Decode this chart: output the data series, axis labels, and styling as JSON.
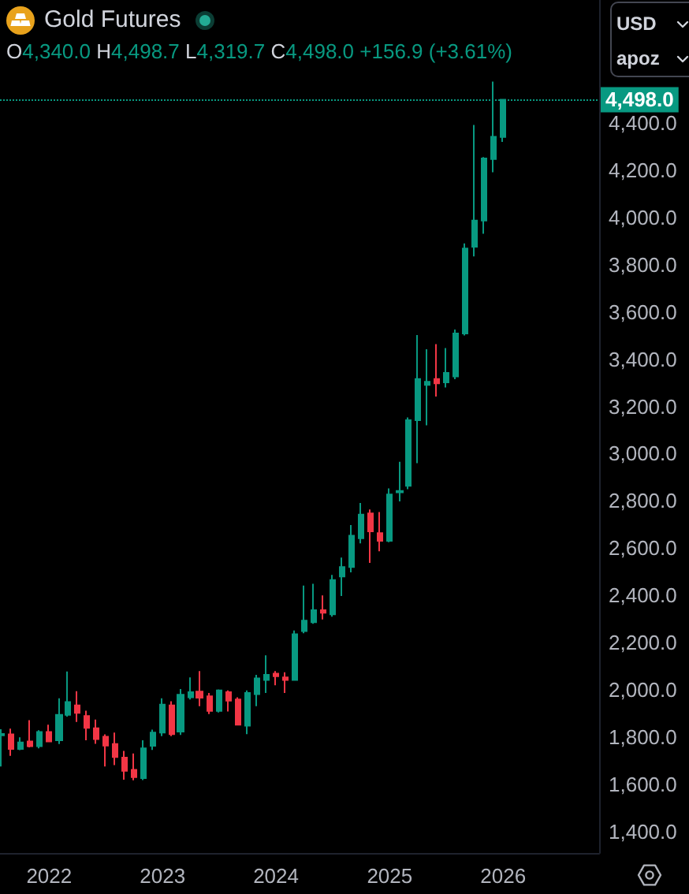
{
  "chart_data": {
    "type": "candlestick",
    "title": "Gold Futures",
    "subtitle": "O4,340.0 H4,498.7 L4,319.7 C4,498.0 +156.9 (+3.61%)",
    "annotations": [
      "USD",
      "apoz"
    ],
    "x": [
      "2021-08",
      "2021-09",
      "2021-10",
      "2021-11",
      "2021-12",
      "2022-01",
      "2022-02",
      "2022-03",
      "2022-04",
      "2022-05",
      "2022-06",
      "2022-07",
      "2022-08",
      "2022-09",
      "2022-10",
      "2022-11",
      "2022-12",
      "2023-01",
      "2023-02",
      "2023-03",
      "2023-04",
      "2023-05",
      "2023-06",
      "2023-07",
      "2023-08",
      "2023-09",
      "2023-10",
      "2023-11",
      "2023-12",
      "2024-01",
      "2024-02",
      "2024-03",
      "2024-04",
      "2024-05",
      "2024-06",
      "2024-07",
      "2024-08",
      "2024-09",
      "2024-10",
      "2024-11",
      "2024-12",
      "2025-01",
      "2025-02",
      "2025-03",
      "2025-04",
      "2025-05",
      "2025-06",
      "2025-07",
      "2025-08",
      "2025-09",
      "2025-10",
      "2025-11",
      "2025-12",
      "2026-01"
    ],
    "ohlc": [
      [
        1808,
        1834,
        1676,
        1814
      ],
      [
        1812,
        1836,
        1721,
        1750
      ],
      [
        1750,
        1800,
        1745,
        1778
      ],
      [
        1782,
        1872,
        1757,
        1762
      ],
      [
        1762,
        1830,
        1753,
        1822
      ],
      [
        1822,
        1853,
        1780,
        1782
      ],
      [
        1787,
        1965,
        1771,
        1895
      ],
      [
        1895,
        2078,
        1887,
        1949
      ],
      [
        1935,
        1995,
        1865,
        1903
      ],
      [
        1890,
        1912,
        1787,
        1840
      ],
      [
        1838,
        1875,
        1772,
        1792
      ],
      [
        1802,
        1812,
        1676,
        1765
      ],
      [
        1771,
        1820,
        1682,
        1716
      ],
      [
        1714,
        1742,
        1620,
        1658
      ],
      [
        1662,
        1731,
        1618,
        1631
      ],
      [
        1627,
        1787,
        1619,
        1753
      ],
      [
        1764,
        1832,
        1746,
        1820
      ],
      [
        1820,
        1965,
        1805,
        1938
      ],
      [
        1935,
        1952,
        1805,
        1813
      ],
      [
        1824,
        2004,
        1810,
        1980
      ],
      [
        1969,
        2053,
        1960,
        1991
      ],
      [
        1993,
        2080,
        1931,
        1967
      ],
      [
        1973,
        1987,
        1898,
        1911
      ],
      [
        1911,
        2002,
        1905,
        1998
      ],
      [
        1991,
        1998,
        1909,
        1955
      ],
      [
        1960,
        1969,
        1850,
        1853
      ],
      [
        1849,
        1998,
        1813,
        1987
      ],
      [
        1982,
        2064,
        1931,
        2049
      ],
      [
        2042,
        2147,
        1987,
        2064
      ],
      [
        2069,
        2080,
        2020,
        2058
      ],
      [
        2053,
        2075,
        1987,
        2042
      ],
      [
        2042,
        2252,
        2040,
        2236
      ],
      [
        2249,
        2442,
        2240,
        2293
      ],
      [
        2287,
        2449,
        2280,
        2338
      ],
      [
        2338,
        2400,
        2298,
        2327
      ],
      [
        2320,
        2487,
        2310,
        2465
      ],
      [
        2480,
        2560,
        2398,
        2520
      ],
      [
        2520,
        2698,
        2498,
        2653
      ],
      [
        2642,
        2791,
        2620,
        2742
      ],
      [
        2747,
        2764,
        2538,
        2671
      ],
      [
        2664,
        2753,
        2587,
        2631
      ],
      [
        2631,
        2853,
        2625,
        2827
      ],
      [
        2836,
        2966,
        2798,
        2842
      ],
      [
        2864,
        3153,
        2850,
        3142
      ],
      [
        3142,
        3502,
        2960,
        3316
      ],
      [
        3291,
        3442,
        3120,
        3304
      ],
      [
        3316,
        3464,
        3242,
        3298
      ],
      [
        3302,
        3447,
        3280,
        3342
      ],
      [
        3327,
        3525,
        3315,
        3509
      ],
      [
        3509,
        3890,
        3500,
        3868
      ],
      [
        3876,
        4391,
        3835,
        3987
      ],
      [
        3987,
        4255,
        3931,
        4249
      ],
      [
        4247,
        4575,
        4191,
        4341
      ],
      [
        4340.0,
        4498.7,
        4319.7,
        4498.0
      ]
    ],
    "colors": [
      "#089981",
      "#f23645",
      "#089981",
      "#f23645",
      "#089981",
      "#f23645",
      "#089981",
      "#089981",
      "#f23645",
      "#f23645",
      "#f23645",
      "#f23645",
      "#f23645",
      "#f23645",
      "#f23645",
      "#089981",
      "#089981",
      "#089981",
      "#f23645",
      "#089981",
      "#089981",
      "#f23645",
      "#f23645",
      "#089981",
      "#f23645",
      "#f23645",
      "#089981",
      "#089981",
      "#089981",
      "#f23645",
      "#f23645",
      "#089981",
      "#089981",
      "#089981",
      "#f23645",
      "#089981",
      "#089981",
      "#089981",
      "#089981",
      "#f23645",
      "#f23645",
      "#089981",
      "#089981",
      "#089981",
      "#089981",
      "#089981",
      "#f23645",
      "#089981",
      "#089981",
      "#089981",
      "#089981",
      "#089981",
      "#089981",
      "#089981"
    ],
    "xlim": [
      "2021-07-27",
      "2026-11-06"
    ],
    "xticks": [
      "2022",
      "2023",
      "2024",
      "2025",
      "2026"
    ],
    "ylim": [
      1310,
      4920
    ],
    "yticks": [
      {
        "value": 1400,
        "label": "1,400.0"
      },
      {
        "value": 1600,
        "label": "1,600.0"
      },
      {
        "value": 1800,
        "label": "1,800.0"
      },
      {
        "value": 2000,
        "label": "2,000.0"
      },
      {
        "value": 2200,
        "label": "2,200.0"
      },
      {
        "value": 2400,
        "label": "2,400.0"
      },
      {
        "value": 2600,
        "label": "2,600.0"
      },
      {
        "value": 2800,
        "label": "2,800.0"
      },
      {
        "value": 3000,
        "label": "3,000.0"
      },
      {
        "value": 3200,
        "label": "3,200.0"
      },
      {
        "value": 3400,
        "label": "3,400.0"
      },
      {
        "value": 3600,
        "label": "3,600.0"
      },
      {
        "value": 3800,
        "label": "3,800.0"
      },
      {
        "value": 4000,
        "label": "4,000.0"
      },
      {
        "value": 4200,
        "label": "4,200.0"
      },
      {
        "value": 4400,
        "label": "4,400.0"
      }
    ],
    "ref_lines": [
      {
        "axis": "y",
        "value": 4498.0,
        "label": "4,498.0",
        "color": "#089981",
        "line_style": "dotted"
      }
    ]
  }
}
